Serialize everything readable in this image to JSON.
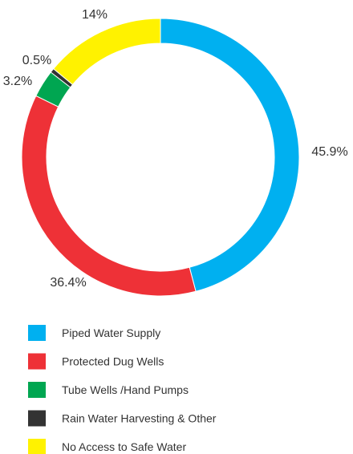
{
  "chart_data": {
    "type": "pie",
    "donut": true,
    "title": "",
    "slices": [
      {
        "name": "Piped Water Supply",
        "value": 45.9,
        "label": "45.9%",
        "color": "#00b0f0"
      },
      {
        "name": "Protected Dug Wells",
        "value": 36.4,
        "label": "36.4%",
        "color": "#ee3137"
      },
      {
        "name": "Tube Wells /Hand Pumps",
        "value": 3.2,
        "label": "3.2%",
        "color": "#00a651"
      },
      {
        "name": "Rain Water Harvesting & Other",
        "value": 0.5,
        "label": "0.5%",
        "color": "#333333"
      },
      {
        "name": "No Access to Safe Water",
        "value": 14,
        "label": "14%",
        "color": "#fff200"
      }
    ],
    "legend_placement": "bottom-left"
  }
}
